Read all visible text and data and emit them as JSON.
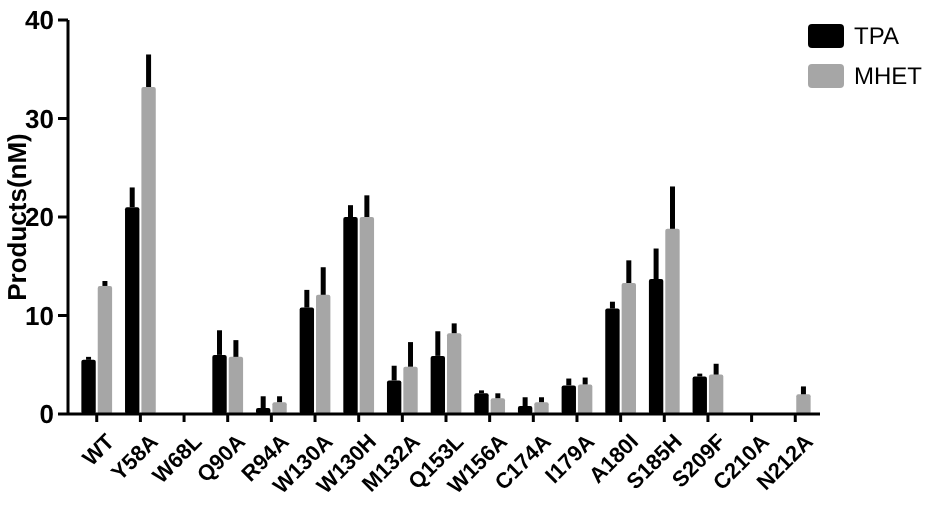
{
  "chart_data": {
    "type": "bar",
    "ylabel": "Products(nM)",
    "categories": [
      "WT",
      "Y58A",
      "W68L",
      "Q90A",
      "R94A",
      "W130A",
      "W130H",
      "M132A",
      "Q153L",
      "W156A",
      "C174A",
      "I179A",
      "A180I",
      "S185H",
      "S209F",
      "C210A",
      "N212A"
    ],
    "series": [
      {
        "name": "TPA",
        "color": "#000000",
        "values": [
          5.5,
          21,
          0,
          6,
          0.6,
          10.8,
          20,
          3.4,
          5.9,
          2.1,
          0.8,
          2.9,
          10.7,
          13.7,
          3.8,
          0,
          0
        ],
        "errors": [
          [
            5.5,
            5.8
          ],
          [
            21,
            23
          ],
          null,
          [
            6,
            8.5
          ],
          [
            0.6,
            1.8
          ],
          [
            10.8,
            12.6
          ],
          [
            20,
            21.2
          ],
          [
            3.4,
            4.9
          ],
          [
            5.9,
            8.4
          ],
          [
            2.1,
            2.4
          ],
          [
            0.8,
            1.7
          ],
          [
            2.9,
            3.6
          ],
          [
            10.7,
            11.4
          ],
          [
            13.7,
            16.8
          ],
          [
            3.8,
            4.1
          ],
          null,
          null
        ]
      },
      {
        "name": "MHET",
        "color": "#a6a6a6",
        "values": [
          13,
          33.2,
          0,
          5.8,
          1.2,
          12.1,
          20,
          4.8,
          8.2,
          1.6,
          1.2,
          3,
          13.3,
          18.8,
          4,
          0,
          2
        ],
        "errors": [
          [
            13,
            13.5
          ],
          [
            33.2,
            36.5
          ],
          null,
          [
            5.8,
            7.5
          ],
          [
            1.2,
            1.8
          ],
          [
            12.1,
            14.9
          ],
          [
            20,
            22.2
          ],
          [
            4.8,
            7.3
          ],
          [
            8.2,
            9.2
          ],
          [
            1.6,
            2.1
          ],
          [
            1.2,
            1.7
          ],
          [
            3,
            3.7
          ],
          [
            13.3,
            15.6
          ],
          [
            18.8,
            23.1
          ],
          [
            4,
            5.1
          ],
          null,
          [
            2,
            2.8
          ]
        ]
      }
    ],
    "ylim": [
      0,
      40
    ],
    "yticks": [
      0,
      10,
      20,
      30,
      40
    ],
    "grid": false,
    "legend": "top right"
  }
}
